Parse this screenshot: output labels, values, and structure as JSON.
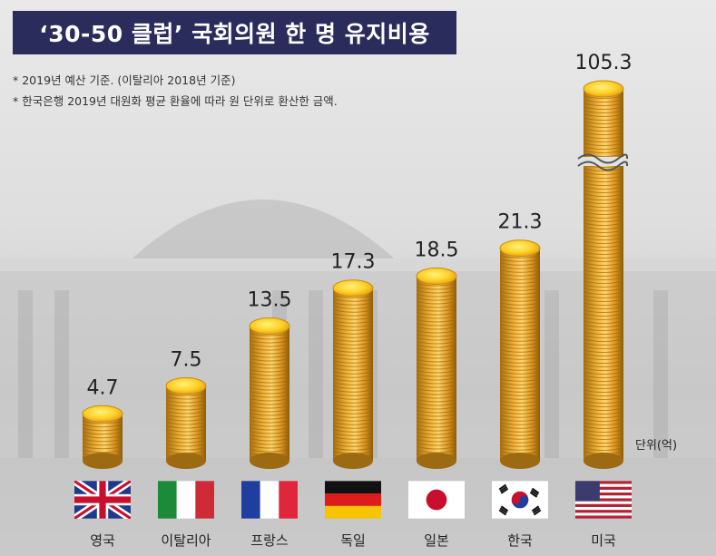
{
  "title": "‘30-50 클럽’ 국회의원 한 명 유지비용",
  "notes": [
    "* 2019년 예산 기준. (이탈리아 2018년 기준)",
    "* 한국은행 2019년 대원화 평균 환율에 따라 원 단위로 환산한 금액."
  ],
  "unit": "단위(억)",
  "chart_data": {
    "type": "bar",
    "categories": [
      "영국",
      "이탈리아",
      "프랑스",
      "독일",
      "일본",
      "한국",
      "미국"
    ],
    "values": [
      4.7,
      7.5,
      13.5,
      17.3,
      18.5,
      21.3,
      105.3
    ],
    "value_labels": [
      "4.7",
      "7.5",
      "13.5",
      "17.3",
      "18.5",
      "21.3",
      "105.3"
    ],
    "ylabel": "단위(억)",
    "axis_break": true,
    "bar_style": "coin-stack",
    "colors": {
      "coin": "#e3a521",
      "coin_dark": "#9c6a10",
      "coin_top": "#ffd94a"
    }
  },
  "flags": [
    "uk-flag-icon",
    "italy-flag-icon",
    "france-flag-icon",
    "germany-flag-icon",
    "japan-flag-icon",
    "korea-flag-icon",
    "usa-flag-icon"
  ]
}
